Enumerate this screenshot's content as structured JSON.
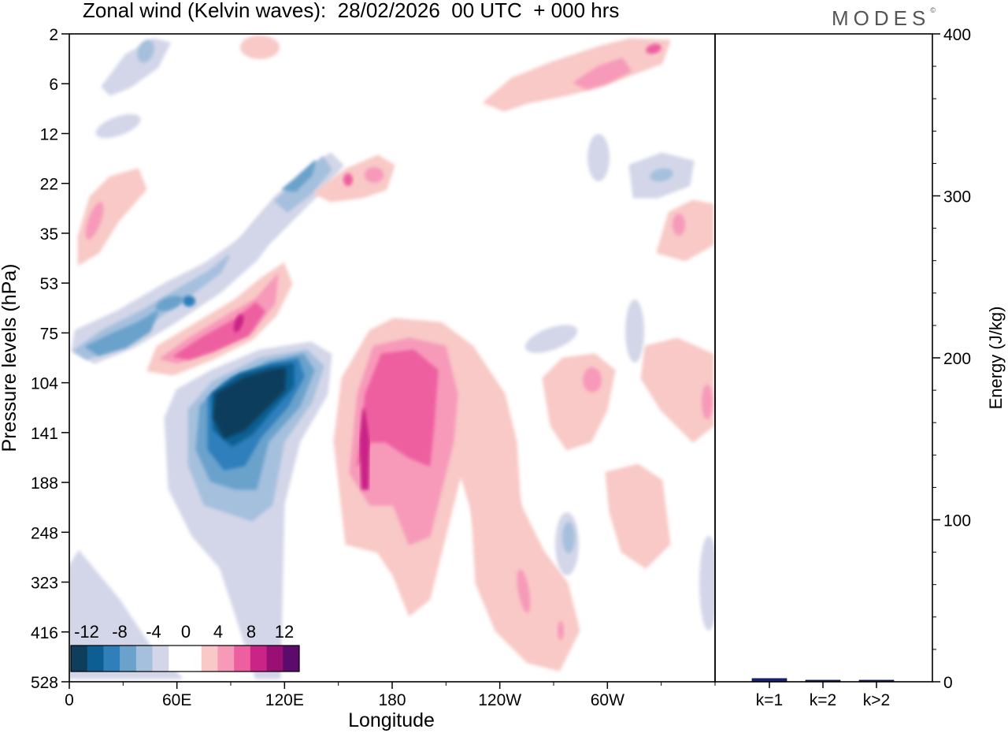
{
  "title": "Zonal wind (Kelvin waves):  28/02/2026  00 UTC  + 000 hrs",
  "logo": "MODES",
  "chart_data": [
    {
      "type": "heatmap",
      "xlabel": "Longitude",
      "ylabel": "Pressure levels (hPa)",
      "x_ticks": [
        "0",
        "60E",
        "120E",
        "180",
        "120W",
        "60W"
      ],
      "y_ticks": [
        "2",
        "6",
        "12",
        "22",
        "35",
        "53",
        "75",
        "104",
        "141",
        "188",
        "248",
        "323",
        "416",
        "528"
      ],
      "colorbar": {
        "tick_labels": [
          "-12",
          "-8",
          "-4",
          "0",
          "4",
          "8",
          "12"
        ],
        "colors": [
          "#0f3e5c",
          "#0d5e92",
          "#2f7fbb",
          "#6aa2cc",
          "#a5c0dd",
          "#d3d6e8",
          "#ffffff",
          "#ffffff",
          "#f8c9c6",
          "#f79ab9",
          "#ee5fa0",
          "#c92486",
          "#990f73",
          "#5b0b6b"
        ]
      },
      "features": [
        {
          "name": "strong negative core",
          "lon": [
            60,
            130
          ],
          "plev": [
            95,
            190
          ],
          "value": -14
        },
        {
          "name": "negative band",
          "lon": [
            0,
            120
          ],
          "plev": [
            30,
            100
          ],
          "value": -6
        },
        {
          "name": "positive band",
          "lon": [
            70,
            125
          ],
          "plev": [
            45,
            95
          ],
          "value": 8
        },
        {
          "name": "positive core",
          "lon": [
            158,
            210
          ],
          "plev": [
            85,
            320
          ],
          "value": 8
        },
        {
          "name": "upper negative band",
          "lon": [
            90,
            160
          ],
          "plev": [
            12,
            30
          ],
          "value": -5
        },
        {
          "name": "upper positive band",
          "lon": [
            150,
            200
          ],
          "plev": [
            18,
            26
          ],
          "value": 6
        },
        {
          "name": "upper positive band east",
          "lon": [
            240,
            320
          ],
          "plev": [
            3,
            10
          ],
          "value": 6
        }
      ]
    },
    {
      "type": "bar",
      "categories": [
        "k=1",
        "k=2",
        "k>2"
      ],
      "values": [
        2,
        1,
        1
      ],
      "ylabel": "Energy (J/kg)",
      "ylim": [
        0,
        400
      ],
      "y_ticks": [
        "0",
        "100",
        "200",
        "300",
        "400"
      ],
      "bar_color": "#1a237e"
    }
  ]
}
